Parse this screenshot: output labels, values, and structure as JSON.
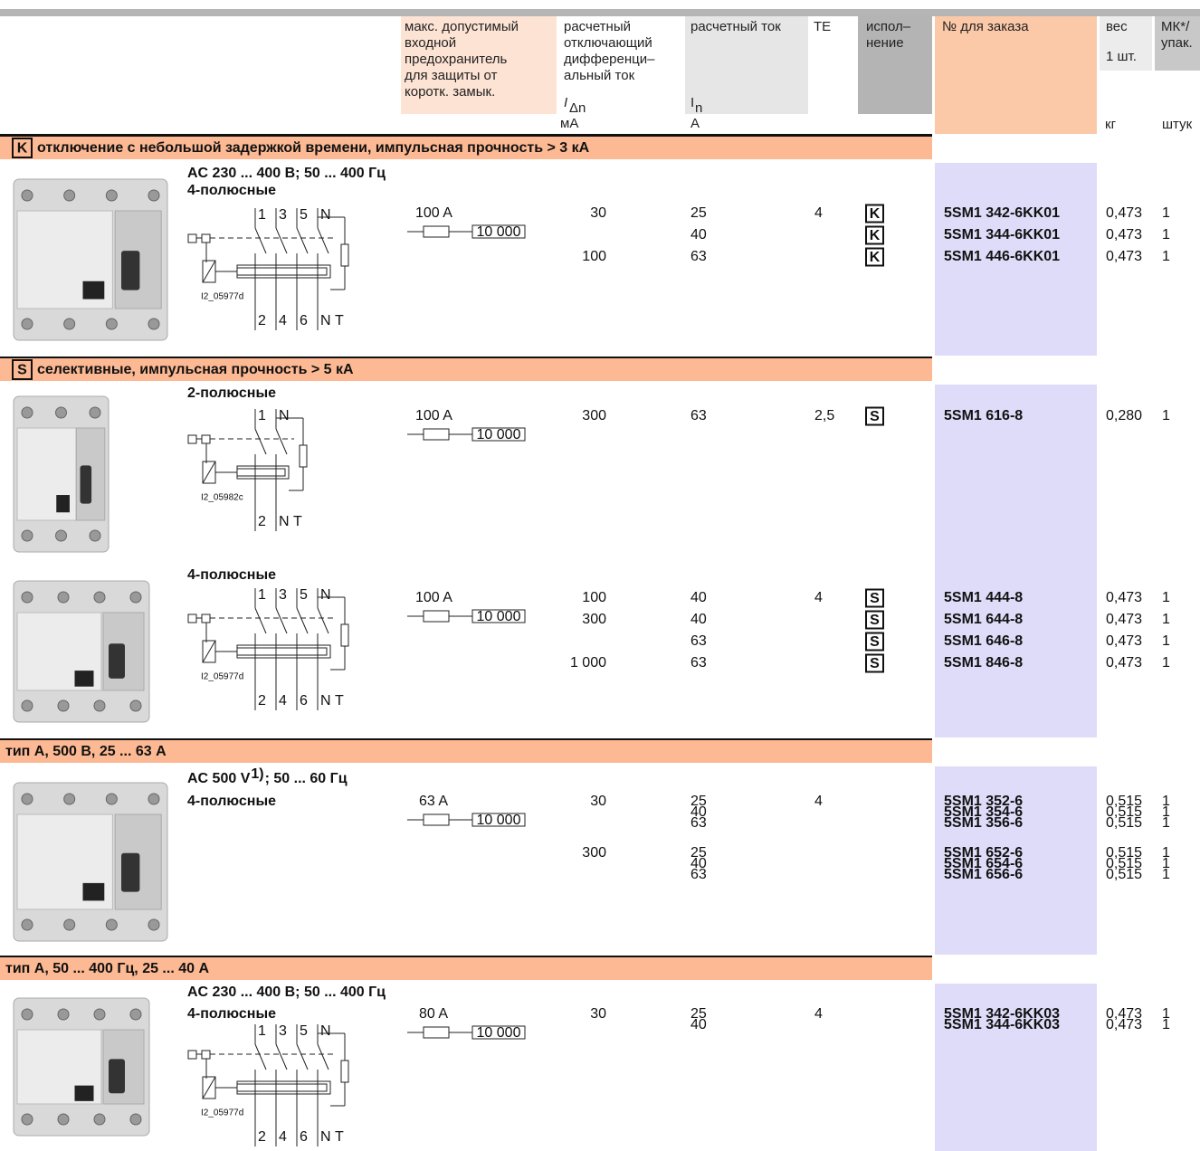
{
  "header": {
    "fuse": [
      "макс. допустимый",
      "входной",
      "предохранитель",
      "для защиты от",
      "коротк. замык."
    ],
    "idn": {
      "lines": [
        "расчетный",
        "отключающий",
        "дифференци–",
        "альный ток"
      ],
      "symbol": "I",
      "sub": "Δn",
      "unit": "мА"
    },
    "in": {
      "lines": [
        "расчетный ток"
      ],
      "symbol": "I",
      "sub": "n",
      "unit": "А"
    },
    "te": "TE",
    "exec": [
      "испол–",
      "нение"
    ],
    "order": "№ для заказа",
    "weight": {
      "lines": [
        "вес",
        "1 шт."
      ],
      "unit": "кг"
    },
    "pack": {
      "lines": [
        "МК*/",
        "упак."
      ],
      "unit": "штук"
    }
  },
  "sections": [
    {
      "badge": "K",
      "title": "отключение с небольшой задержкой времени, импульсная прочность > 3 кА",
      "groups": [
        {
          "lines": [
            "AC 230 ... 400 В; 50 ... 400 Гц",
            "4-полюсные"
          ],
          "diagram": {
            "id": "I2_05977d",
            "top": [
              "1",
              "3",
              "5",
              "N"
            ],
            "bottom": [
              "2",
              "4",
              "6",
              "N",
              "T"
            ]
          },
          "fuse": {
            "rating": "100 A",
            "breaking": "10 000"
          },
          "rows": [
            {
              "idn": "30",
              "in": "25",
              "te": "4",
              "exec": "K",
              "order": "5SM1 342-6KK01",
              "weight": "0,473",
              "pack": "1"
            },
            {
              "in": "40",
              "exec": "K",
              "order": "5SM1 344-6KK01",
              "weight": "0,473",
              "pack": "1"
            },
            {
              "idn": "100",
              "in": "63",
              "exec": "K",
              "order": "5SM1 446-6KK01",
              "weight": "0,473",
              "pack": "1"
            }
          ]
        }
      ]
    },
    {
      "badge": "S",
      "title": "селективные, импульсная прочность > 5 кА",
      "groups": [
        {
          "lines": [
            "2-полюсные"
          ],
          "diagram": {
            "id": "I2_05982c",
            "top": [
              "1",
              "N"
            ],
            "bottom": [
              "2",
              "N",
              "T"
            ]
          },
          "fuse": {
            "rating": "100 A",
            "breaking": "10 000"
          },
          "rows": [
            {
              "idn": "300",
              "in": "63",
              "te": "2,5",
              "exec": "S",
              "order": "5SM1 616-8",
              "weight": "0,280",
              "pack": "1"
            }
          ]
        },
        {
          "lines": [
            "4-полюсные"
          ],
          "diagram": {
            "id": "I2_05977d",
            "top": [
              "1",
              "3",
              "5",
              "N"
            ],
            "bottom": [
              "2",
              "4",
              "6",
              "N",
              "T"
            ]
          },
          "fuse": {
            "rating": "100 A",
            "breaking": "10 000"
          },
          "rows": [
            {
              "idn": "100",
              "in": "40",
              "te": "4",
              "exec": "S",
              "order": "5SM1 444-8",
              "weight": "0,473",
              "pack": "1"
            },
            {
              "idn": "300",
              "in": "40",
              "exec": "S",
              "order": "5SM1 644-8",
              "weight": "0,473",
              "pack": "1"
            },
            {
              "in": "63",
              "exec": "S",
              "order": "5SM1 646-8",
              "weight": "0,473",
              "pack": "1"
            },
            {
              "idn": "1 000",
              "in": "63",
              "exec": "S",
              "order": "5SM1 846-8",
              "weight": "0,473",
              "pack": "1"
            }
          ]
        }
      ]
    },
    {
      "title": "тип А, 500 В, 25 ... 63 А",
      "groups": [
        {
          "lines": [
            {
              "text": "AC 500 V",
              "sup": "1)",
              "rest": "; 50 ... 60 Гц"
            },
            "4-полюсные"
          ],
          "fuse": {
            "rating": "63 A",
            "breaking": "10 000"
          },
          "rows": [
            {
              "idn": "30",
              "in": "25",
              "te": "4",
              "order": "5SM1 352-6",
              "weight": "0,515",
              "pack": "1"
            },
            {
              "in": "40",
              "order": "5SM1 354-6",
              "weight": "0,515",
              "pack": "1"
            },
            {
              "in": "63",
              "order": "5SM1 356-6",
              "weight": "0,515",
              "pack": "1"
            },
            {
              "idn": "300",
              "in": "25",
              "order": "5SM1 652-6",
              "weight": "0,515",
              "pack": "1"
            },
            {
              "in": "40",
              "order": "5SM1 654-6",
              "weight": "0,515",
              "pack": "1"
            },
            {
              "in": "63",
              "order": "5SM1 656-6",
              "weight": "0,515",
              "pack": "1"
            }
          ]
        }
      ]
    },
    {
      "title": "тип А, 50 ... 400 Гц, 25 ... 40 А",
      "groups": [
        {
          "lines": [
            "AC 230 ... 400 В; 50 ... 400 Гц",
            "4-полюсные"
          ],
          "diagram": {
            "id": "I2_05977d",
            "top": [
              "1",
              "3",
              "5",
              "N"
            ],
            "bottom": [
              "2",
              "4",
              "6",
              "N",
              "T"
            ]
          },
          "fuse": {
            "rating": "80 A",
            "breaking": "10 000"
          },
          "rows": [
            {
              "idn": "30",
              "in": "25",
              "te": "4",
              "order": "5SM1 342-6KK03",
              "weight": "0,473",
              "pack": "1"
            },
            {
              "in": "40",
              "order": "5SM1 344-6KK03",
              "weight": "0,473",
              "pack": "1"
            }
          ]
        }
      ]
    }
  ]
}
